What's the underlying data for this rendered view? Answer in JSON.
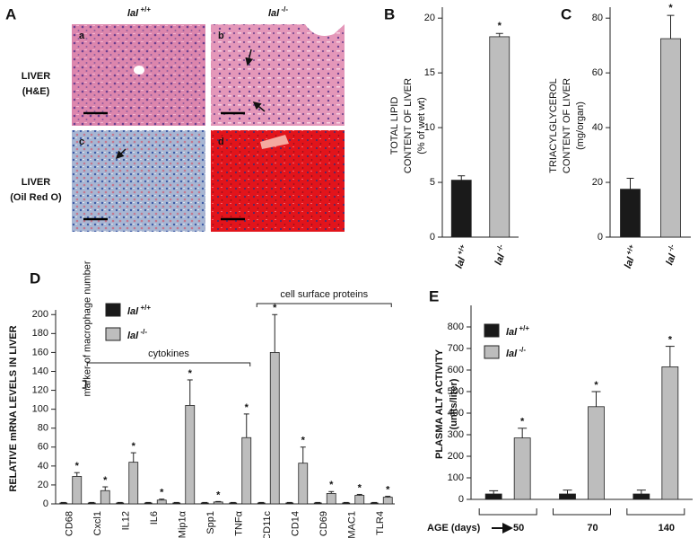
{
  "panel_a": {
    "label": "A",
    "columns": [
      "lal +/+",
      "lal -/-"
    ],
    "rows": [
      [
        "LIVER",
        "(H&E)"
      ],
      [
        "LIVER",
        "(Oil Red O)"
      ]
    ],
    "images": [
      "a",
      "b",
      "c",
      "d"
    ]
  },
  "chart_data": [
    {
      "type": "bar",
      "panel": "B",
      "ylabel": [
        "TOTAL LIPID",
        "CONTENT OF LIVER",
        "(% of wet wt)"
      ],
      "categories": [
        "lal +/+",
        "lal -/-"
      ],
      "values": [
        5.2,
        18.3
      ],
      "errors": [
        0.4,
        0.3
      ],
      "colors": [
        "#1a1a1a",
        "#bdbdbd"
      ],
      "significance": "*",
      "ylim": [
        0,
        21
      ],
      "yticks": [
        0,
        5,
        10,
        15,
        20
      ]
    },
    {
      "type": "bar",
      "panel": "C",
      "ylabel": [
        "TRIACYLGLYCEROL",
        "CONTENT OF LIVER",
        "(mg/organ)"
      ],
      "categories": [
        "lal +/+",
        "lal -/-"
      ],
      "values": [
        17.5,
        72.5
      ],
      "errors": [
        4,
        8.5
      ],
      "colors": [
        "#1a1a1a",
        "#bdbdbd"
      ],
      "significance": "*",
      "ylim": [
        0,
        84
      ],
      "yticks": [
        0,
        20,
        40,
        60,
        80
      ]
    },
    {
      "type": "grouped_bar",
      "panel": "D",
      "ylabel": "RELATIVE mRNA LEVELS IN LIVER",
      "categories": [
        "CD68",
        "Cxcl1",
        "IL12",
        "IL6",
        "Mip1α",
        "Spp1",
        "TNFα",
        "CD11c",
        "CD14",
        "CD69",
        "MAC1",
        "TLR4"
      ],
      "series": [
        {
          "name": "lal +/+",
          "color": "#1a1a1a",
          "values": [
            1,
            1,
            1,
            1,
            1,
            1,
            1,
            1,
            1,
            1,
            1,
            1
          ],
          "errors": [
            0.5,
            0.5,
            0.5,
            0.5,
            0.5,
            0.5,
            0.5,
            0.5,
            0.5,
            0.5,
            0.5,
            0.5
          ]
        },
        {
          "name": "lal -/-",
          "color": "#bdbdbd",
          "values": [
            29,
            14,
            44,
            4,
            104,
            2,
            70,
            160,
            43,
            11,
            9,
            7
          ],
          "errors": [
            4,
            4,
            10,
            1,
            27,
            0.5,
            25,
            40,
            17,
            2,
            1,
            1
          ]
        }
      ],
      "significance": "*",
      "marker_note": {
        "label": "marker of macrophage number",
        "category": "CD68"
      },
      "groups": [
        {
          "label": "cytokines",
          "from": "Cxcl1",
          "to": "TNFα"
        },
        {
          "label": "cell surface proteins",
          "from": "CD11c",
          "to": "TLR4"
        }
      ],
      "ylim": [
        0,
        205
      ],
      "yticks": [
        0,
        20,
        40,
        60,
        80,
        100,
        120,
        140,
        160,
        180,
        200
      ]
    },
    {
      "type": "grouped_bar",
      "panel": "E",
      "ylabel": [
        "PLASMA ALT ACTIVITY",
        "(units/liter)"
      ],
      "xlabel": "AGE (days)",
      "categories": [
        "50",
        "70",
        "140"
      ],
      "series": [
        {
          "name": "lal +/+",
          "color": "#1a1a1a",
          "values": [
            25,
            25,
            25
          ],
          "errors": [
            15,
            18,
            18
          ]
        },
        {
          "name": "lal -/-",
          "color": "#bdbdbd",
          "values": [
            285,
            430,
            615
          ],
          "errors": [
            45,
            70,
            95
          ]
        }
      ],
      "significance": "*",
      "ylim": [
        0,
        900
      ],
      "yticks": [
        0,
        100,
        200,
        300,
        400,
        500,
        600,
        700,
        800
      ]
    }
  ]
}
